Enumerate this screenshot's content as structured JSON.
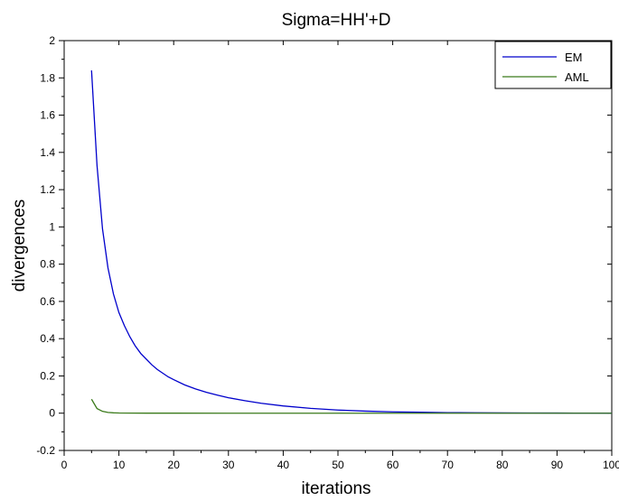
{
  "chart_data": {
    "type": "line",
    "title": "Sigma=HH'+D",
    "xlabel": "iterations",
    "ylabel": "divergences",
    "xlim": [
      0,
      100
    ],
    "ylim": [
      -0.2,
      2
    ],
    "xticks": [
      0,
      10,
      20,
      30,
      40,
      50,
      60,
      70,
      80,
      90,
      100
    ],
    "yticks": [
      -0.2,
      0,
      0.2,
      0.4,
      0.6,
      0.8,
      1,
      1.2,
      1.4,
      1.6,
      1.8,
      2
    ],
    "xtick_labels": [
      "0",
      "10",
      "20",
      "30",
      "40",
      "50",
      "60",
      "70",
      "80",
      "90",
      "100"
    ],
    "ytick_labels": [
      "-0.2",
      "0",
      "0.2",
      "0.4",
      "0.6",
      "0.8",
      "1",
      "1.2",
      "1.4",
      "1.6",
      "1.8",
      "2"
    ],
    "grid": false,
    "legend_position": "top-right",
    "series": [
      {
        "name": "EM",
        "color": "#0000cc",
        "x": [
          5,
          6,
          7,
          8,
          9,
          10,
          11,
          12,
          13,
          14,
          15,
          16,
          17,
          18,
          19,
          20,
          22,
          24,
          26,
          28,
          30,
          33,
          36,
          40,
          45,
          50,
          55,
          60,
          65,
          70,
          75,
          80,
          85,
          90,
          95,
          100
        ],
        "y": [
          1.84,
          1.33,
          0.99,
          0.78,
          0.64,
          0.54,
          0.47,
          0.41,
          0.36,
          0.32,
          0.29,
          0.26,
          0.235,
          0.215,
          0.195,
          0.18,
          0.152,
          0.13,
          0.112,
          0.097,
          0.083,
          0.067,
          0.053,
          0.039,
          0.026,
          0.017,
          0.011,
          0.007,
          0.005,
          0.003,
          0.002,
          0.0015,
          0.001,
          0.0007,
          0.0004,
          0.0002
        ]
      },
      {
        "name": "AML",
        "color": "#3a7a1a",
        "x": [
          5,
          6,
          7,
          8,
          9,
          10,
          12,
          15,
          20,
          30,
          40,
          50,
          60,
          70,
          80,
          90,
          100
        ],
        "y": [
          0.075,
          0.025,
          0.01,
          0.004,
          0.002,
          0.001,
          0.0005,
          0.0002,
          0.0001,
          0,
          0,
          0,
          0,
          0,
          0,
          0,
          0
        ]
      }
    ]
  }
}
